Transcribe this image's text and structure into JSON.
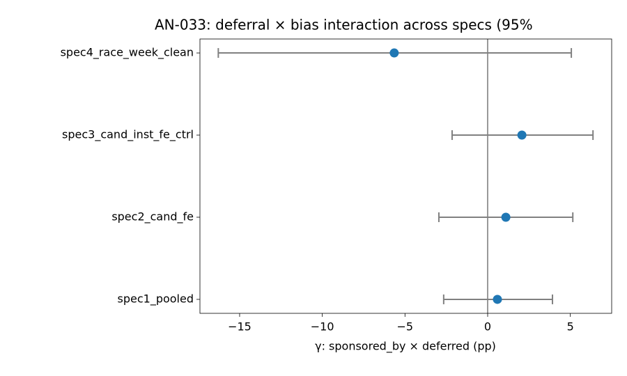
{
  "chart_data": {
    "type": "forest",
    "title": "AN-033: deferral × bias interaction across specs (95%",
    "xlabel": "γ: sponsored_by × deferred (pp)",
    "categories": [
      "spec1_pooled",
      "spec2_cand_fe",
      "spec3_cand_inst_fe_ctrl",
      "spec4_race_week_clean"
    ],
    "values": [
      0.59,
      1.1,
      2.07,
      -5.65
    ],
    "lower": [
      -2.66,
      -2.95,
      -2.15,
      -16.29
    ],
    "upper": [
      3.92,
      5.15,
      6.37,
      5.06
    ],
    "color": "#1f77b4",
    "errorbar_color": "#808080",
    "reference_line": 0,
    "xlim": [
      -17.4,
      7.5
    ],
    "xticks": [
      {
        "value": -15,
        "label": "−15"
      },
      {
        "value": -10,
        "label": "−10"
      },
      {
        "value": -5,
        "label": "−5"
      },
      0,
      5
    ]
  }
}
